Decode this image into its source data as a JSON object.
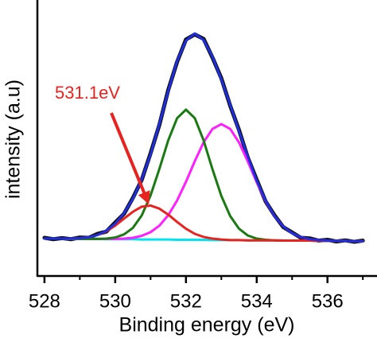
{
  "chart_data": {
    "type": "line",
    "x_label": "Binding energy (eV)",
    "y_label": "intensity (a.u)",
    "annotation": "531.1eV",
    "annotation_color": "#e8231f",
    "xlim": [
      527.8,
      537.4
    ],
    "ylim": [
      0,
      97
    ],
    "xticks": [
      528,
      530,
      532,
      534,
      536
    ],
    "xminorticks": [
      529,
      531,
      533,
      535,
      537
    ],
    "x": [
      528,
      528.25,
      528.5,
      528.75,
      529,
      529.25,
      529.5,
      529.75,
      530,
      530.25,
      530.5,
      530.75,
      531,
      531.25,
      531.5,
      531.75,
      532,
      532.25,
      532.5,
      532.75,
      533,
      533.25,
      533.5,
      533.75,
      534,
      534.25,
      534.5,
      534.75,
      535,
      535.25,
      535.5,
      535.75,
      536,
      536.25,
      536.5,
      536.75,
      537
    ],
    "series": [
      {
        "color": "#111111",
        "width": 5,
        "values": [
          13.5,
          13.0,
          13.4,
          13.0,
          13.6,
          13.5,
          14.9,
          15.7,
          18.9,
          22.0,
          27.6,
          34.0,
          43.4,
          53.5,
          65.8,
          75.7,
          83.6,
          85.4,
          83.8,
          77.2,
          69.9,
          60.2,
          51.6,
          41.8,
          34.0,
          26.4,
          21.5,
          17.3,
          15.4,
          13.5,
          13.3,
          12.5,
          12.8,
          12.2,
          12.6,
          12.1,
          12.5
        ]
      },
      {
        "color": "#00e5f0",
        "width": 3,
        "values": [
          13.2,
          13.2,
          13.2,
          13.1,
          13.1,
          13.1,
          13.1,
          13.0,
          13.0,
          13.0,
          13.0,
          12.9,
          12.9,
          12.9,
          12.9,
          12.8,
          12.8,
          12.8,
          12.8,
          12.7,
          12.7,
          12.7,
          12.7,
          12.6,
          12.6,
          12.6,
          12.6,
          12.5,
          12.5,
          12.5,
          12.5,
          12.4,
          12.4,
          12.4,
          12.4,
          12.3,
          12.3
        ]
      },
      {
        "color": "#ff1fff",
        "width": 3,
        "values": [
          13.2,
          13.2,
          13.2,
          13.1,
          13.1,
          13.1,
          13.1,
          13.1,
          13.1,
          13.2,
          13.5,
          14.2,
          15.5,
          17.8,
          21.5,
          26.7,
          33.3,
          40.6,
          47.3,
          52.0,
          53.7,
          52.0,
          47.2,
          40.4,
          33.1,
          26.5,
          21.2,
          17.5,
          15.1,
          13.7,
          13.0,
          12.7,
          12.5,
          12.4,
          12.4,
          12.3,
          12.3
        ]
      },
      {
        "color": "#1a7a12",
        "width": 3,
        "values": [
          13.2,
          13.2,
          13.2,
          13.1,
          13.1,
          13.1,
          13.1,
          13.2,
          13.6,
          14.7,
          17.0,
          21.4,
          28.5,
          37.9,
          48.0,
          55.8,
          58.8,
          55.8,
          47.9,
          37.7,
          28.3,
          21.2,
          16.7,
          14.3,
          13.2,
          12.8,
          12.6,
          12.5,
          12.5,
          12.5,
          12.5,
          12.4,
          12.4,
          12.4,
          12.4,
          12.3,
          12.3
        ]
      },
      {
        "color": "#e8231f",
        "width": 3,
        "values": [
          13.2,
          13.2,
          13.2,
          13.2,
          13.4,
          13.7,
          14.5,
          15.8,
          17.8,
          20.3,
          22.7,
          24.5,
          24.9,
          23.8,
          21.7,
          19.1,
          16.7,
          14.9,
          13.8,
          13.2,
          12.9,
          12.7,
          12.7,
          12.6,
          12.6,
          12.6,
          12.6,
          12.5,
          12.5,
          12.5,
          12.5,
          12.4,
          12.4,
          12.4,
          12.4,
          12.3,
          12.3
        ]
      },
      {
        "color": "#1f2ee0",
        "width": 3,
        "values": [
          13.2,
          13.2,
          13.2,
          13.2,
          13.4,
          13.7,
          14.5,
          16.0,
          18.5,
          22.2,
          27.3,
          34.2,
          43.0,
          53.8,
          65.4,
          76.0,
          83.2,
          85.7,
          83.4,
          77.5,
          69.5,
          60.5,
          51.2,
          42.1,
          33.7,
          26.7,
          21.2,
          17.5,
          15.1,
          13.7,
          13.0,
          12.7,
          12.5,
          12.4,
          12.4,
          12.3,
          12.3
        ]
      }
    ]
  }
}
